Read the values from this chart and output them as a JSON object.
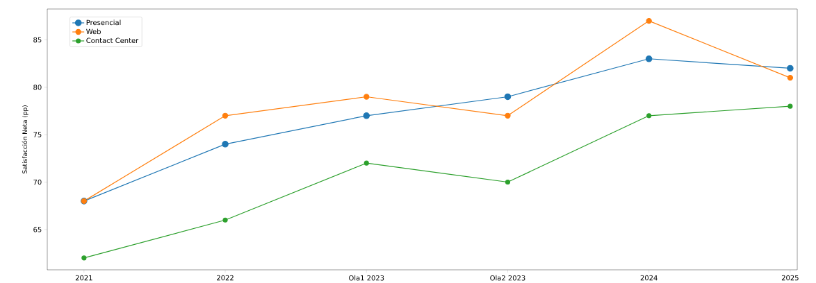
{
  "chart_data": {
    "type": "line",
    "ylabel": "Satisfacción Neta (pp)",
    "categories": [
      "2021",
      "2022",
      "Ola1 2023",
      "Ola2 2023",
      "2024",
      "2025"
    ],
    "series": [
      {
        "name": "Presencial",
        "color": "#1f77b4",
        "values": [
          68,
          74,
          77,
          79,
          83,
          82
        ]
      },
      {
        "name": "Web",
        "color": "#ff7f0e",
        "values": [
          68,
          77,
          79,
          77,
          87,
          81
        ]
      },
      {
        "name": "Contact Center",
        "color": "#2ca02c",
        "values": [
          62,
          66,
          72,
          70,
          77,
          78
        ]
      }
    ],
    "ylim": [
      60.75,
      88.25
    ],
    "yticks": [
      65,
      70,
      75,
      80,
      85
    ],
    "legend": "top left",
    "marker": "circle",
    "grid": false
  }
}
